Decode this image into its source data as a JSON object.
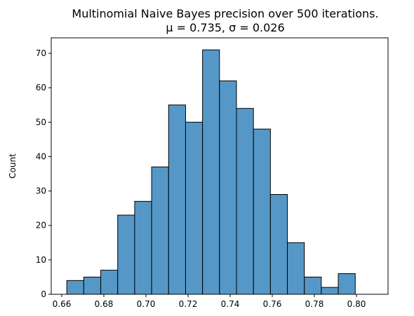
{
  "chart_data": {
    "type": "bar",
    "histogram": true,
    "title_line1": "Multinomial Naive Bayes precision over 500 iterations.",
    "title_line2": "μ = 0.735, σ = 0.026",
    "xlabel": "",
    "ylabel": "Count",
    "xlim": [
      0.655,
      0.815
    ],
    "ylim": [
      0,
      74.5
    ],
    "bin_start": 0.6624,
    "bin_width": 0.00806,
    "values": [
      4,
      5,
      7,
      23,
      27,
      37,
      55,
      50,
      71,
      62,
      54,
      48,
      29,
      15,
      5,
      2,
      6
    ],
    "x_ticks": [
      0.66,
      0.68,
      0.7,
      0.72,
      0.74,
      0.76,
      0.78,
      0.8
    ],
    "x_tick_labels": [
      "0.66",
      "0.68",
      "0.70",
      "0.72",
      "0.74",
      "0.76",
      "0.78",
      "0.80"
    ],
    "y_ticks": [
      0,
      10,
      20,
      30,
      40,
      50,
      60,
      70
    ],
    "y_tick_labels": [
      "0",
      "10",
      "20",
      "30",
      "40",
      "50",
      "60",
      "70"
    ],
    "grid": false,
    "bar_color": "#5598c8",
    "bar_edge_color": "#000000"
  }
}
